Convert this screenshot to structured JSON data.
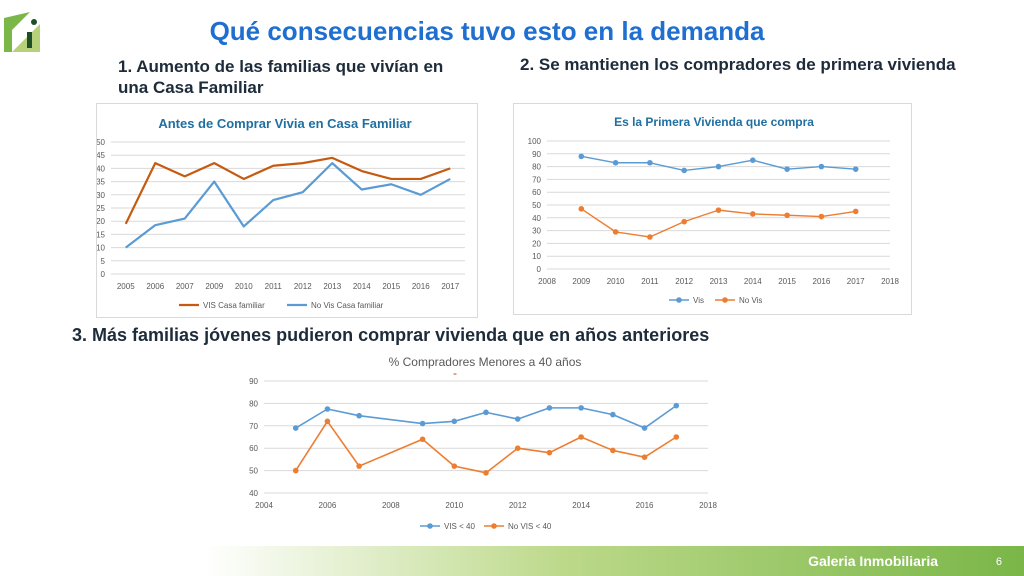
{
  "slide": {
    "title": "Qué consecuencias tuvo esto en la demanda",
    "subtitle1": "1. Aumento de  las familias que vivían en una Casa Familiar",
    "subtitle2": "2. Se mantienen los compradores de primera vivienda",
    "subtitle3": "3. Más familias jóvenes pudieron comprar vivienda  que en años anteriores",
    "footer": "Galeria Inmobiliaria",
    "page_number": "6",
    "minus_mark": "-"
  },
  "colors": {
    "title": "#1f6fd1",
    "vis_dark": "#c55a11",
    "blue": "#5b9bd5",
    "orange": "#ed7d31",
    "footer_green": "#7ab648"
  },
  "chart_data": [
    {
      "type": "line",
      "title": "Antes de Comprar Vivia en Casa Familiar",
      "categories": [
        "2005",
        "2006",
        "2007",
        "2009",
        "2010",
        "2011",
        "2012",
        "2013",
        "2014",
        "2015",
        "2016",
        "2017"
      ],
      "series": [
        {
          "name": "VIS Casa familiar",
          "color": "#c55a11",
          "values": [
            19,
            42,
            37,
            42,
            36,
            41,
            42,
            44,
            39,
            36,
            36,
            40
          ]
        },
        {
          "name": "No Vis Casa familiar",
          "color": "#5b9bd5",
          "values": [
            10,
            18.5,
            21,
            35,
            18,
            28,
            31,
            42,
            32,
            34,
            30,
            36
          ]
        }
      ],
      "ylim": [
        0,
        50
      ],
      "yticks": [
        0,
        5,
        10,
        15,
        20,
        25,
        30,
        35,
        40,
        45,
        50
      ],
      "grid": true,
      "legend": "bottom"
    },
    {
      "type": "line",
      "title": "Es la Primera Vivienda que compra",
      "x_ticks": [
        2008,
        2009,
        2010,
        2011,
        2012,
        2013,
        2014,
        2015,
        2016,
        2017,
        2018
      ],
      "xlim": [
        2008,
        2018
      ],
      "series": [
        {
          "name": "Vis",
          "color": "#5b9bd5",
          "x": [
            2009,
            2010,
            2011,
            2012,
            2013,
            2014,
            2015,
            2016,
            2017
          ],
          "values": [
            88,
            83,
            83,
            77,
            80,
            85,
            78,
            80,
            78
          ]
        },
        {
          "name": "No Vis",
          "color": "#ed7d31",
          "x": [
            2009,
            2010,
            2011,
            2012,
            2013,
            2014,
            2015,
            2016,
            2017
          ],
          "values": [
            47,
            29,
            25,
            37,
            46,
            43,
            42,
            41,
            45
          ]
        }
      ],
      "ylim": [
        0,
        100
      ],
      "yticks": [
        0,
        10,
        20,
        30,
        40,
        50,
        60,
        70,
        80,
        90,
        100
      ],
      "grid": true,
      "legend": "bottom"
    },
    {
      "type": "line",
      "title": "% Compradores Menores a 40 años",
      "x_ticks": [
        2004,
        2006,
        2008,
        2010,
        2012,
        2014,
        2016,
        2018
      ],
      "xlim": [
        2004,
        2018
      ],
      "series": [
        {
          "name": "VIS < 40",
          "color": "#5b9bd5",
          "x": [
            2005,
            2006,
            2007,
            2009,
            2010,
            2011,
            2012,
            2013,
            2014,
            2015,
            2016,
            2017
          ],
          "values": [
            69,
            77.5,
            74.5,
            71,
            72,
            76,
            73,
            78,
            78,
            75,
            69,
            79
          ]
        },
        {
          "name": "No VIS < 40",
          "color": "#ed7d31",
          "x": [
            2005,
            2006,
            2007,
            2009,
            2010,
            2011,
            2012,
            2013,
            2014,
            2015,
            2016,
            2017
          ],
          "values": [
            50,
            72,
            52,
            64,
            52,
            49,
            60,
            58,
            65,
            59,
            56,
            65
          ]
        }
      ],
      "ylim": [
        40,
        90
      ],
      "yticks": [
        40,
        50,
        60,
        70,
        80,
        90
      ],
      "grid": true,
      "legend": "bottom"
    }
  ]
}
